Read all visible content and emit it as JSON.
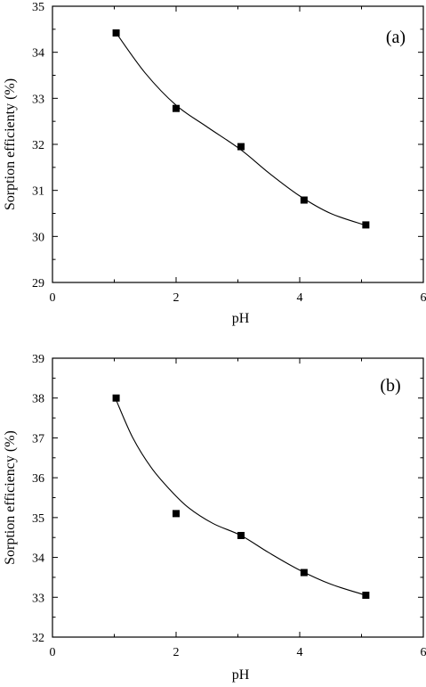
{
  "chart_data": [
    {
      "type": "scatter",
      "panel_label": "(a)",
      "xlabel": "pH",
      "ylabel": "Sorption efficienty (%)",
      "xlim": [
        0,
        6
      ],
      "ylim": [
        29,
        35
      ],
      "xticks": [
        0,
        2,
        4,
        6
      ],
      "yticks": [
        29,
        30,
        31,
        32,
        33,
        34,
        35
      ],
      "grid": false,
      "series": [
        {
          "x": [
            1.03,
            2.0,
            3.05,
            4.07,
            5.07
          ],
          "y": [
            34.42,
            32.78,
            31.95,
            30.79,
            30.25
          ],
          "fit": {
            "x": [
              1.03,
              1.5,
              2.0,
              2.5,
              3.05,
              3.5,
              4.0,
              4.5,
              5.07
            ],
            "y": [
              34.42,
              33.55,
              32.85,
              32.38,
              31.88,
              31.38,
              30.88,
              30.5,
              30.24
            ]
          }
        }
      ]
    },
    {
      "type": "scatter",
      "panel_label": "(b)",
      "xlabel": "pH",
      "ylabel": "Sorption efficiency (%)",
      "xlim": [
        0,
        6
      ],
      "ylim": [
        32,
        39
      ],
      "xticks": [
        0,
        2,
        4,
        6
      ],
      "yticks": [
        32,
        33,
        34,
        35,
        36,
        37,
        38,
        39
      ],
      "grid": false,
      "series": [
        {
          "x": [
            1.03,
            2.0,
            3.05,
            4.07,
            5.07
          ],
          "y": [
            38.0,
            35.1,
            34.55,
            33.62,
            33.05
          ],
          "fit": {
            "x": [
              1.03,
              1.3,
              1.6,
              1.9,
              2.2,
              2.6,
              3.05,
              3.5,
              4.0,
              4.5,
              5.07
            ],
            "y": [
              37.95,
              37.0,
              36.25,
              35.7,
              35.25,
              34.85,
              34.55,
              34.12,
              33.68,
              33.33,
              33.05
            ]
          }
        }
      ]
    }
  ]
}
